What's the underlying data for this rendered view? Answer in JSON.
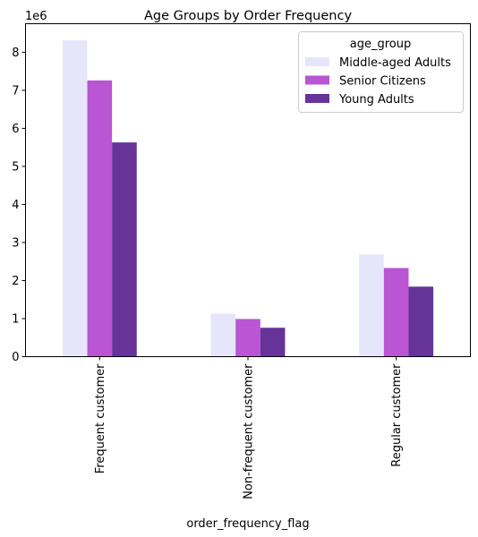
{
  "chart_data": {
    "type": "bar",
    "title": "Age Groups by Order Frequency",
    "xlabel": "order_frequency_flag",
    "ylabel": "",
    "y_offset_label": "1e6",
    "y_scale": 1000000,
    "ylim": [
      0,
      8.75
    ],
    "yticks": [
      "0",
      "1",
      "2",
      "3",
      "4",
      "5",
      "6",
      "7",
      "8"
    ],
    "categories": [
      "Frequent customer",
      "Non-frequent customer",
      "Regular customer"
    ],
    "legend_title": "age_group",
    "legend_position": "top-right",
    "grid": false,
    "series": [
      {
        "name": "Middle-aged Adults",
        "color": "#e6e6fa",
        "values": [
          8.32,
          1.13,
          2.69
        ]
      },
      {
        "name": "Senior Citizens",
        "color": "#ba55d3",
        "values": [
          7.26,
          0.99,
          2.33
        ]
      },
      {
        "name": "Young Adults",
        "color": "#663399",
        "values": [
          5.63,
          0.76,
          1.84
        ]
      }
    ]
  }
}
